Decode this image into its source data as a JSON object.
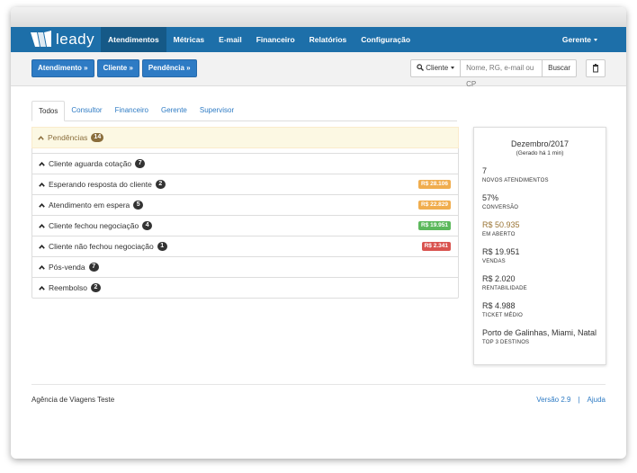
{
  "nav": {
    "brand": "leady",
    "items": [
      "Atendimentos",
      "Métricas",
      "E-mail",
      "Financeiro",
      "Relatórios",
      "Configuração"
    ],
    "active": 0,
    "user": "Gerente"
  },
  "toolbar": {
    "buttons": [
      "Atendimento »",
      "Cliente »",
      "Pendência »"
    ],
    "search_type": "Cliente",
    "search_placeholder": "Nome, RG, e-mail ou CP",
    "search_button": "Buscar"
  },
  "tabs": {
    "items": [
      "Todos",
      "Consultor",
      "Financeiro",
      "Gerente",
      "Supervisor"
    ],
    "active": 0
  },
  "panel": {
    "title": "Pendências",
    "count": 14,
    "rows": [
      {
        "label": "Cliente aguarda cotação",
        "count": 7
      },
      {
        "label": "Esperando resposta do cliente",
        "count": 2,
        "amount": "R$ 28.106",
        "amount_color": "#f0ad4e"
      },
      {
        "label": "Atendimento em espera",
        "count": 5,
        "amount": "R$ 22.829",
        "amount_color": "#f0ad4e"
      },
      {
        "label": "Cliente fechou negociação",
        "count": 4,
        "amount": "R$ 19.951",
        "amount_color": "#5cb85c"
      },
      {
        "label": "Cliente não fechou negociação",
        "count": 1,
        "amount": "R$ 2.341",
        "amount_color": "#d9534f"
      },
      {
        "label": "Pós-venda",
        "count": 7
      },
      {
        "label": "Reembolso",
        "count": 2
      }
    ]
  },
  "summary": {
    "title": "Dezembro/2017",
    "subtitle": "(Gerado há 1 min)",
    "stats": [
      {
        "value": "7",
        "label": "NOVOS ATENDIMENTOS"
      },
      {
        "value": "57%",
        "label": "CONVERSÃO"
      },
      {
        "value": "R$ 50.935",
        "label": "EM ABERTO",
        "color": "#9a7434"
      },
      {
        "value": "R$ 19.951",
        "label": "VENDAS"
      },
      {
        "value": "R$ 2.020",
        "label": "RENTABILIDADE"
      },
      {
        "value": "R$ 4.988",
        "label": "TICKET MÉDIO"
      },
      {
        "value": "Porto de Galinhas, Miami, Natal",
        "label": "TOP 3 DESTINOS"
      }
    ]
  },
  "footer": {
    "company": "Agência de Viagens Teste",
    "version": "Versão 2.9",
    "separator": "|",
    "help": "Ajuda"
  }
}
